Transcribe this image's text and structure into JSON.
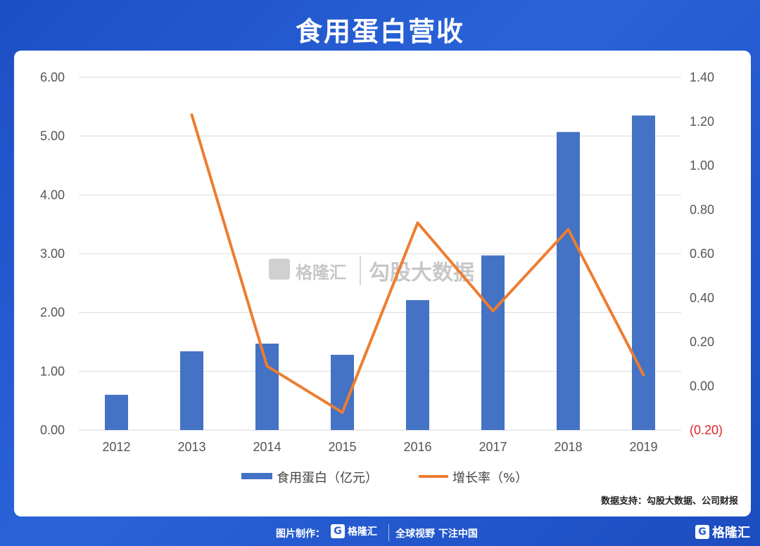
{
  "header": {
    "title": "食用蛋白营收"
  },
  "chart_data": {
    "type": "bar+line",
    "categories": [
      "2012",
      "2013",
      "2014",
      "2015",
      "2016",
      "2017",
      "2018",
      "2019"
    ],
    "series": [
      {
        "name": "食用蛋白（亿元）",
        "type": "bar",
        "axis": "left",
        "values": [
          0.6,
          1.34,
          1.47,
          1.28,
          2.21,
          2.97,
          5.07,
          5.35
        ]
      },
      {
        "name": "增长率（%）",
        "type": "line",
        "axis": "right",
        "values": [
          null,
          1.23,
          0.09,
          -0.12,
          0.74,
          0.34,
          0.71,
          0.05
        ]
      }
    ],
    "y_left": {
      "ylim": [
        0,
        6
      ],
      "ticks": [
        "0.00",
        "1.00",
        "2.00",
        "3.00",
        "4.00",
        "5.00",
        "6.00"
      ]
    },
    "y_right": {
      "ylim": [
        -0.2,
        1.4
      ],
      "ticks": [
        "(0.20)",
        "0.00",
        "0.20",
        "0.40",
        "0.60",
        "0.80",
        "1.00",
        "1.20",
        "1.40"
      ]
    },
    "grid": true,
    "legend": "bottom-center",
    "colors": {
      "bar": "#4472c4",
      "line": "#ed7d31",
      "grid": "#d9d9d9",
      "negative_tick": "#e02424"
    }
  },
  "watermark": {
    "brand": "格隆汇",
    "text": "勾股大数据"
  },
  "source": "数据支持：勾股大数据、公司财报",
  "footer": {
    "credit": "图片制作：",
    "logo": "格隆汇",
    "slogan": "全球视野 下注中国",
    "corner_logo": "格隆汇"
  }
}
